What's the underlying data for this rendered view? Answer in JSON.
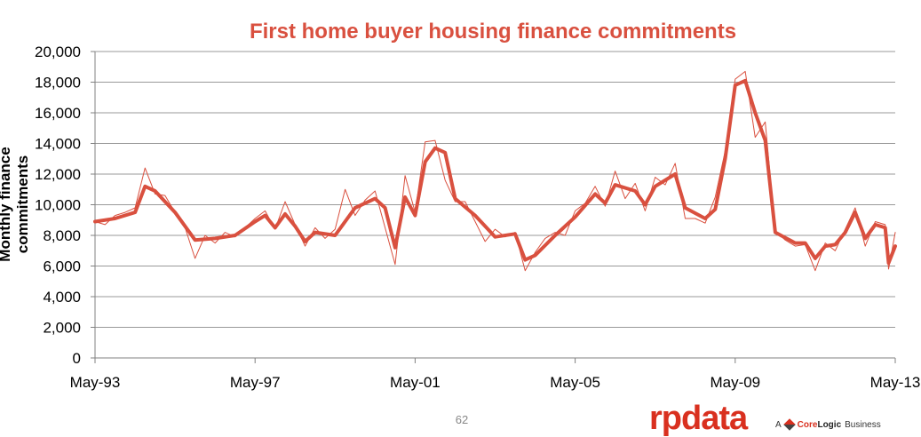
{
  "chart_data": {
    "type": "line",
    "title": "First home buyer housing finance commitments",
    "ylabel": "Monthly  finance commitments",
    "xlabel": "",
    "ylim": [
      0,
      20000
    ],
    "yticks": [
      0,
      2000,
      4000,
      6000,
      8000,
      10000,
      12000,
      14000,
      16000,
      18000,
      20000
    ],
    "ytick_labels": [
      "0",
      "2,000",
      "4,000",
      "6,000",
      "8,000",
      "10,000",
      "12,000",
      "14,000",
      "16,000",
      "18,000",
      "20,000"
    ],
    "xlim": [
      "1993-05",
      "2013-05"
    ],
    "xtick_labels": [
      "May-93",
      "May-97",
      "May-01",
      "May-05",
      "May-09",
      "May-13"
    ],
    "xticks": [
      "1993-05",
      "1997-05",
      "2001-05",
      "2005-05",
      "2009-05",
      "2013-05"
    ],
    "grid": "horizontal",
    "colors": {
      "series": "#d9503f",
      "grid": "#999999",
      "axis": "#808080"
    },
    "series": [
      {
        "style": "thin",
        "points": [
          [
            "1993-05",
            8900
          ],
          [
            "1993-08",
            8700
          ],
          [
            "1993-11",
            9300
          ],
          [
            "1994-02",
            9500
          ],
          [
            "1994-05",
            9800
          ],
          [
            "1994-08",
            12400
          ],
          [
            "1994-11",
            10700
          ],
          [
            "1995-02",
            10600
          ],
          [
            "1995-05",
            9500
          ],
          [
            "1995-08",
            8500
          ],
          [
            "1995-11",
            6500
          ],
          [
            "1996-02",
            8000
          ],
          [
            "1996-05",
            7500
          ],
          [
            "1996-08",
            8200
          ],
          [
            "1996-11",
            7900
          ],
          [
            "1997-02",
            8500
          ],
          [
            "1997-05",
            9100
          ],
          [
            "1997-08",
            9600
          ],
          [
            "1997-11",
            8400
          ],
          [
            "1998-02",
            10200
          ],
          [
            "1998-05",
            8700
          ],
          [
            "1998-08",
            7300
          ],
          [
            "1998-11",
            8500
          ],
          [
            "1999-02",
            7800
          ],
          [
            "1999-05",
            8400
          ],
          [
            "1999-08",
            11000
          ],
          [
            "1999-11",
            9300
          ],
          [
            "2000-02",
            10300
          ],
          [
            "2000-05",
            10900
          ],
          [
            "2000-08",
            8500
          ],
          [
            "2000-11",
            6100
          ],
          [
            "2001-02",
            11900
          ],
          [
            "2001-05",
            9500
          ],
          [
            "2001-08",
            14100
          ],
          [
            "2001-11",
            14200
          ],
          [
            "2002-02",
            11600
          ],
          [
            "2002-05",
            10200
          ],
          [
            "2002-08",
            10200
          ],
          [
            "2002-11",
            8900
          ],
          [
            "2003-02",
            7600
          ],
          [
            "2003-05",
            8400
          ],
          [
            "2003-08",
            7900
          ],
          [
            "2003-11",
            8200
          ],
          [
            "2004-02",
            5700
          ],
          [
            "2004-05",
            6900
          ],
          [
            "2004-08",
            7800
          ],
          [
            "2004-11",
            8200
          ],
          [
            "2005-02",
            8000
          ],
          [
            "2005-05",
            9600
          ],
          [
            "2005-08",
            10100
          ],
          [
            "2005-11",
            11200
          ],
          [
            "2006-02",
            9900
          ],
          [
            "2006-05",
            12200
          ],
          [
            "2006-08",
            10400
          ],
          [
            "2006-11",
            11400
          ],
          [
            "2007-02",
            9600
          ],
          [
            "2007-05",
            11800
          ],
          [
            "2007-08",
            11300
          ],
          [
            "2007-11",
            12700
          ],
          [
            "2008-02",
            9100
          ],
          [
            "2008-05",
            9100
          ],
          [
            "2008-08",
            8800
          ],
          [
            "2008-11",
            10500
          ],
          [
            "2009-02",
            13500
          ],
          [
            "2009-05",
            18200
          ],
          [
            "2009-08",
            18700
          ],
          [
            "2009-11",
            14400
          ],
          [
            "2010-02",
            15400
          ],
          [
            "2010-05",
            8300
          ],
          [
            "2010-08",
            7700
          ],
          [
            "2010-11",
            7300
          ],
          [
            "2011-02",
            7400
          ],
          [
            "2011-05",
            5700
          ],
          [
            "2011-08",
            7500
          ],
          [
            "2011-11",
            7000
          ],
          [
            "2012-02",
            8400
          ],
          [
            "2012-05",
            9800
          ],
          [
            "2012-08",
            7300
          ],
          [
            "2012-11",
            8900
          ],
          [
            "2013-02",
            8700
          ],
          [
            "2013-03",
            5800
          ],
          [
            "2013-05",
            8200
          ]
        ]
      },
      {
        "style": "thick",
        "points": [
          [
            "1993-05",
            8900
          ],
          [
            "1993-11",
            9100
          ],
          [
            "1994-05",
            9500
          ],
          [
            "1994-08",
            11200
          ],
          [
            "1994-11",
            10900
          ],
          [
            "1995-05",
            9500
          ],
          [
            "1995-11",
            7700
          ],
          [
            "1996-05",
            7800
          ],
          [
            "1996-11",
            8000
          ],
          [
            "1997-05",
            8900
          ],
          [
            "1997-08",
            9300
          ],
          [
            "1997-11",
            8500
          ],
          [
            "1998-02",
            9400
          ],
          [
            "1998-05",
            8600
          ],
          [
            "1998-08",
            7600
          ],
          [
            "1998-11",
            8200
          ],
          [
            "1999-05",
            8000
          ],
          [
            "1999-11",
            9800
          ],
          [
            "2000-05",
            10400
          ],
          [
            "2000-08",
            9800
          ],
          [
            "2000-11",
            7200
          ],
          [
            "2001-02",
            10500
          ],
          [
            "2001-05",
            9300
          ],
          [
            "2001-08",
            12800
          ],
          [
            "2001-11",
            13700
          ],
          [
            "2002-02",
            13400
          ],
          [
            "2002-05",
            10400
          ],
          [
            "2002-11",
            9300
          ],
          [
            "2003-05",
            7900
          ],
          [
            "2003-11",
            8100
          ],
          [
            "2004-02",
            6400
          ],
          [
            "2004-05",
            6700
          ],
          [
            "2004-11",
            8000
          ],
          [
            "2005-05",
            9200
          ],
          [
            "2005-11",
            10700
          ],
          [
            "2006-02",
            10100
          ],
          [
            "2006-05",
            11300
          ],
          [
            "2006-11",
            10900
          ],
          [
            "2007-02",
            10000
          ],
          [
            "2007-05",
            11200
          ],
          [
            "2007-11",
            12000
          ],
          [
            "2008-02",
            9800
          ],
          [
            "2008-08",
            9100
          ],
          [
            "2008-11",
            9700
          ],
          [
            "2009-02",
            13000
          ],
          [
            "2009-05",
            17800
          ],
          [
            "2009-08",
            18100
          ],
          [
            "2009-11",
            16000
          ],
          [
            "2010-02",
            14200
          ],
          [
            "2010-05",
            8200
          ],
          [
            "2010-11",
            7500
          ],
          [
            "2011-02",
            7500
          ],
          [
            "2011-05",
            6500
          ],
          [
            "2011-08",
            7300
          ],
          [
            "2011-11",
            7400
          ],
          [
            "2012-02",
            8200
          ],
          [
            "2012-05",
            9500
          ],
          [
            "2012-08",
            7800
          ],
          [
            "2012-11",
            8700
          ],
          [
            "2013-02",
            8500
          ],
          [
            "2013-03",
            6200
          ],
          [
            "2013-05",
            7300
          ]
        ]
      }
    ]
  },
  "footer": {
    "page_number": "62",
    "brand": "rpdata",
    "tagline_prefix": "A",
    "tagline_core": "Core",
    "tagline_logic": "Logic",
    "tagline_suffix": "Business"
  }
}
